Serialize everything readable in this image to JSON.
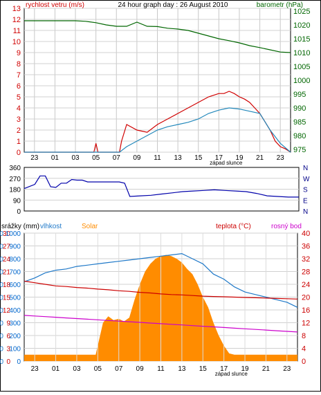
{
  "chart_data": [
    {
      "type": "line",
      "title": "24 hour graph day : 26 August 2010",
      "left_axis": {
        "label": "rychlost vetru (m/s)",
        "ylim": [
          0,
          13
        ],
        "ticks": [
          0,
          1,
          2,
          3,
          4,
          5,
          6,
          7,
          8,
          9,
          10,
          11,
          12,
          13
        ],
        "color": "#d00000"
      },
      "right_axis": {
        "label": "barometr (hPa)",
        "ylim": [
          974,
          1026
        ],
        "ticks": [
          975,
          980,
          985,
          990,
          995,
          1000,
          1005,
          1010,
          1015,
          1020,
          1025
        ],
        "color": "#006600"
      },
      "x_ticks": [
        "23",
        "01",
        "03",
        "05",
        "07",
        "09",
        "11",
        "13",
        "15",
        "17",
        "19",
        "21",
        "23"
      ],
      "annotation": "západ slunce",
      "series": [
        {
          "axis": "right",
          "color": "#006600",
          "x": [
            0,
            1,
            2,
            3,
            4,
            5,
            6,
            7,
            8,
            9,
            10,
            11,
            12,
            13,
            14,
            15,
            16,
            17,
            18,
            19,
            20,
            21,
            22,
            23,
            24,
            25,
            26
          ],
          "values": [
            1021.5,
            1021.5,
            1021.5,
            1021.5,
            1021.5,
            1021.5,
            1021.3,
            1020.8,
            1020,
            1019.5,
            1019.5,
            1021,
            1019.5,
            1019.4,
            1018.8,
            1018.5,
            1018,
            1017,
            1016,
            1015,
            1014.3,
            1013.5,
            1012.5,
            1011.8,
            1011,
            1010.2,
            1010
          ]
        },
        {
          "axis": "left",
          "color": "#d00000",
          "x": [
            0,
            5,
            6.8,
            7,
            7.2,
            8,
            9.3,
            9.5,
            10,
            11,
            12,
            13,
            14,
            15,
            16,
            17,
            18,
            19,
            19.5,
            20,
            20.5,
            21,
            21.5,
            22,
            22.5,
            23,
            24,
            24.5,
            25,
            25.5,
            26
          ],
          "values": [
            0,
            0,
            0,
            0.8,
            0,
            0,
            0,
            1,
            2.5,
            2,
            1.8,
            2.5,
            3,
            3.5,
            4,
            4.5,
            5,
            5.3,
            5.3,
            5.5,
            5.3,
            5,
            4.8,
            4.5,
            4,
            3.5,
            2,
            1,
            0.5,
            0.3,
            0
          ]
        },
        {
          "axis": "left",
          "color": "#2288bb",
          "x": [
            0,
            9.3,
            10,
            11,
            12,
            13,
            14,
            15,
            16,
            17,
            18,
            19,
            20,
            21,
            22,
            23,
            24,
            25,
            26
          ],
          "values": [
            0,
            0,
            0.5,
            1,
            1.5,
            2,
            2.3,
            2.5,
            2.7,
            3,
            3.5,
            3.8,
            4,
            3.9,
            3.7,
            3.5,
            2,
            0.8,
            0
          ]
        }
      ]
    },
    {
      "type": "line",
      "left_axis": {
        "ylim": [
          0,
          360
        ],
        "ticks": [
          0,
          90,
          180,
          270,
          360
        ]
      },
      "right_axis": {
        "ticks": [
          "N",
          "W",
          "S",
          "E",
          "N"
        ]
      },
      "series": [
        {
          "name": "",
          "color": "#0000aa",
          "x": [
            0,
            1,
            1.5,
            2,
            2.5,
            3,
            3.5,
            4,
            4.5,
            5,
            5.5,
            6,
            6.5,
            7,
            7.5,
            8,
            8.5,
            9,
            9.5,
            10,
            11,
            12,
            13,
            14,
            15,
            16,
            17,
            18,
            19,
            20,
            21,
            22,
            23,
            24,
            25,
            26
          ],
          "values": [
            185,
            220,
            290,
            290,
            200,
            195,
            230,
            230,
            260,
            255,
            255,
            240,
            240,
            240,
            240,
            240,
            240,
            240,
            230,
            120,
            125,
            130,
            140,
            150,
            160,
            165,
            170,
            175,
            170,
            165,
            160,
            145,
            125,
            120,
            115,
            115
          ]
        }
      ]
    },
    {
      "type": "line",
      "legend_left": [
        "srážky (mm)",
        "vlhkost",
        "Solar"
      ],
      "legend_right": [
        "teplota (°C)",
        "rosný bod"
      ],
      "left_axes": [
        {
          "ticks": [
            0,
            10,
            20,
            30,
            40,
            50,
            60,
            70,
            80,
            90,
            100
          ]
        },
        {
          "ticks": [
            0,
            3,
            6,
            9,
            12,
            15,
            18,
            21,
            24,
            27,
            30
          ]
        },
        {
          "ticks": [
            0,
            100,
            200,
            300,
            400,
            500,
            600,
            700,
            800,
            900,
            1000
          ]
        }
      ],
      "right_axis": {
        "ylim": [
          0,
          40
        ],
        "ticks": [
          0,
          4,
          8,
          12,
          16,
          20,
          24,
          28,
          32,
          36,
          40
        ]
      },
      "x_ticks": [
        "23",
        "01",
        "03",
        "05",
        "07",
        "09",
        "11",
        "13",
        "15",
        "17",
        "19",
        "21",
        "23"
      ],
      "annotation": "západ slunce",
      "series": [
        {
          "name": "Solar",
          "axis": "solar",
          "color": "#ff8c00",
          "x": [
            0,
            6.3,
            6.8,
            7,
            7.5,
            8,
            8.5,
            9,
            9.5,
            10,
            10.5,
            11,
            11.5,
            12,
            12.5,
            13,
            13.5,
            14,
            14.5,
            15,
            15.5,
            16,
            16.5,
            17,
            17.5,
            18,
            18.5,
            19,
            19.5,
            20,
            20.5,
            21,
            21.5,
            22,
            22.5,
            23,
            26
          ],
          "values": [
            50,
            50,
            50,
            120,
            300,
            350,
            320,
            330,
            310,
            340,
            480,
            600,
            700,
            760,
            800,
            820,
            830,
            820,
            800,
            770,
            720,
            680,
            600,
            500,
            420,
            300,
            200,
            120,
            60,
            50,
            50,
            50,
            50,
            50,
            50,
            50,
            50
          ]
        },
        {
          "name": "vlhkost",
          "axis": "humidity",
          "color": "#1e78c8",
          "x": [
            0,
            1,
            2,
            3,
            4,
            5,
            6,
            7,
            8,
            9,
            10,
            11,
            12,
            13,
            14,
            15,
            16,
            17,
            18,
            19,
            20,
            21,
            22,
            23,
            24,
            25,
            26
          ],
          "values": [
            62,
            65,
            69,
            71,
            72,
            74,
            75,
            76,
            77,
            78,
            79,
            80,
            81,
            82,
            83,
            84,
            80,
            76,
            68,
            64,
            58,
            54,
            52,
            50,
            48,
            46,
            42
          ]
        },
        {
          "name": "teplota (°C)",
          "axis": "temp",
          "color": "#cc0000",
          "x": [
            0,
            1,
            2,
            3,
            4,
            5,
            6,
            7,
            8,
            9,
            10,
            11,
            12,
            13,
            14,
            15,
            16,
            17,
            18,
            19,
            20,
            21,
            22,
            23,
            24,
            25,
            26
          ],
          "values": [
            25,
            24.5,
            24,
            23.5,
            23.3,
            23,
            22.8,
            22.5,
            22.3,
            22.0,
            21.8,
            21.5,
            21.3,
            21,
            20.8,
            20.7,
            20.5,
            20.3,
            20.2,
            20.1,
            20.0,
            19.9,
            19.8,
            19.7,
            19.6,
            19.5,
            19.4
          ]
        },
        {
          "name": "rosný bod",
          "axis": "temp",
          "color": "#cc00cc",
          "x": [
            0,
            1,
            2,
            3,
            4,
            5,
            6,
            7,
            8,
            9,
            10,
            11,
            12,
            13,
            14,
            15,
            16,
            17,
            18,
            19,
            20,
            21,
            22,
            23,
            24,
            25,
            26
          ],
          "values": [
            14.3,
            14.1,
            13.9,
            13.7,
            13.5,
            13.3,
            13.1,
            12.9,
            12.7,
            12.5,
            12.3,
            12.1,
            11.9,
            11.7,
            11.5,
            11.3,
            11.1,
            10.9,
            10.7,
            10.5,
            10.3,
            10.1,
            9.9,
            9.7,
            9.5,
            9.3,
            9.1
          ]
        }
      ]
    }
  ]
}
